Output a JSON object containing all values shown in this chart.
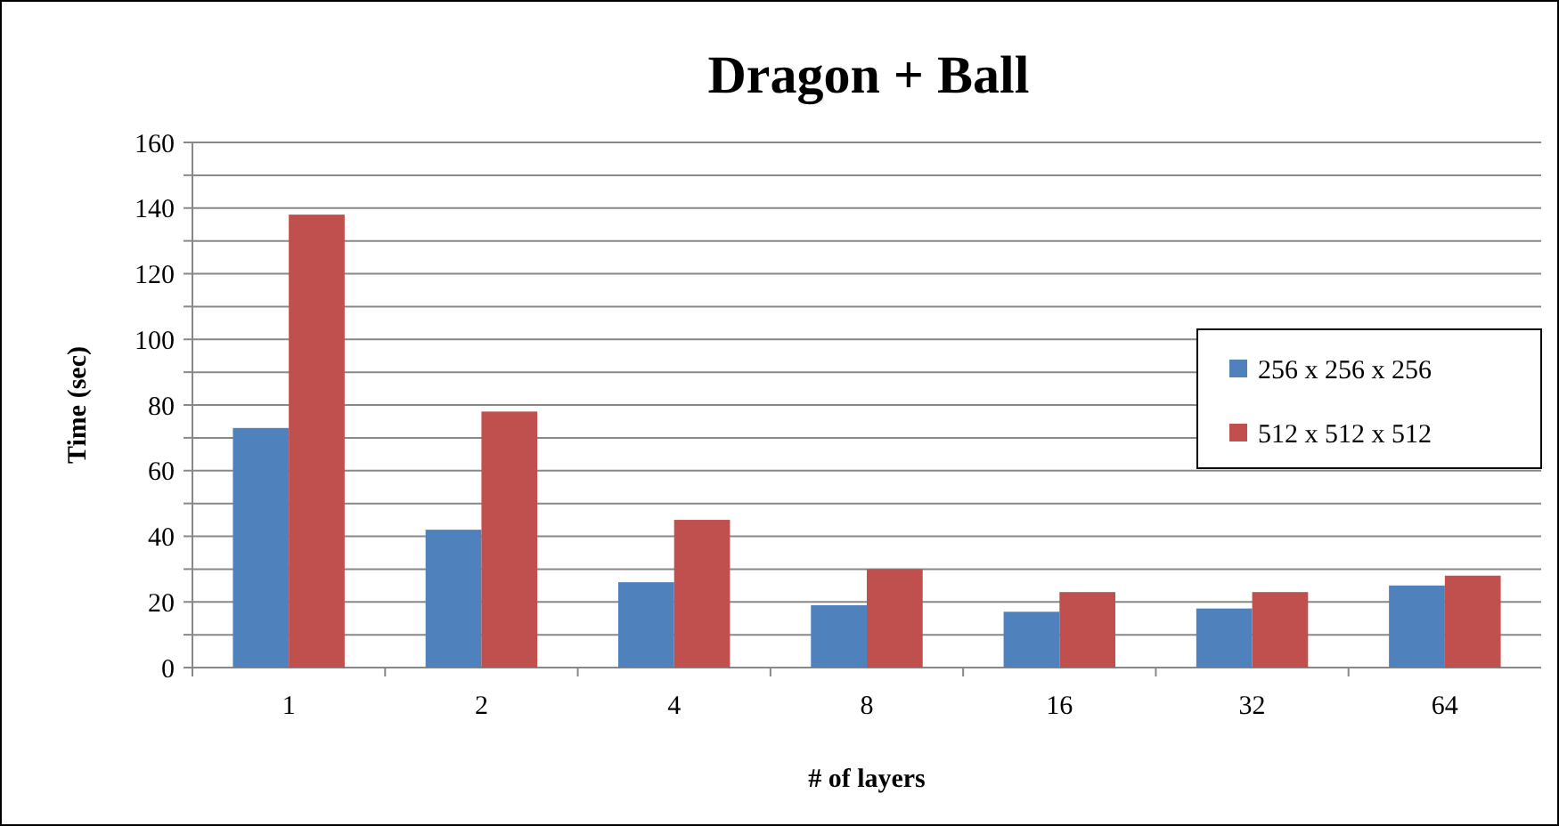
{
  "chart_data": {
    "type": "bar",
    "title": "Dragon + Ball",
    "xlabel": "# of layers",
    "ylabel": "Time (sec)",
    "categories": [
      "1",
      "2",
      "4",
      "8",
      "16",
      "32",
      "64"
    ],
    "series": [
      {
        "name": "256 x 256 x 256",
        "color": "#4f81bd",
        "values": [
          73,
          42,
          26,
          19,
          17,
          18,
          25
        ]
      },
      {
        "name": "512 x 512 x 512",
        "color": "#c0504d",
        "values": [
          138,
          78,
          45,
          30,
          23,
          23,
          28
        ]
      }
    ],
    "ylim": [
      0,
      160
    ],
    "yticks": [
      0,
      {
        "value": 10,
        "label": null
      },
      20,
      {
        "value": 30,
        "label": null
      },
      40,
      {
        "value": 50,
        "label": null
      },
      60,
      {
        "value": 70,
        "label": null
      },
      80,
      {
        "value": 90,
        "label": null
      },
      100,
      {
        "value": 110,
        "label": null
      },
      120,
      {
        "value": 130,
        "label": null
      },
      140,
      {
        "value": 150,
        "label": null
      },
      160
    ],
    "grid": "y",
    "legend": "right"
  }
}
